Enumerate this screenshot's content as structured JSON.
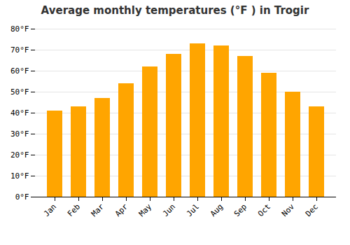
{
  "chart_data": {
    "type": "bar",
    "title": "Average monthly temperatures (°F ) in Trogir",
    "categories": [
      "Jan",
      "Feb",
      "Mar",
      "Apr",
      "May",
      "Jun",
      "Jul",
      "Aug",
      "Sep",
      "Oct",
      "Nov",
      "Dec"
    ],
    "values": [
      41,
      43,
      47,
      54,
      62,
      68,
      73,
      72,
      67,
      59,
      50,
      43
    ],
    "color": "#FFA500",
    "ylim": [
      0,
      80
    ],
    "yticks": [
      {
        "value": 0,
        "label": "0°F"
      },
      {
        "value": 10,
        "label": "10°F"
      },
      {
        "value": 20,
        "label": "20°F"
      },
      {
        "value": 30,
        "label": "30°F"
      },
      {
        "value": 40,
        "label": "40°F"
      },
      {
        "value": 50,
        "label": "50°F"
      },
      {
        "value": 60,
        "label": "60°F"
      },
      {
        "value": 70,
        "label": "70°F"
      },
      {
        "value": 80,
        "label": "80°F"
      }
    ],
    "grid": true
  }
}
